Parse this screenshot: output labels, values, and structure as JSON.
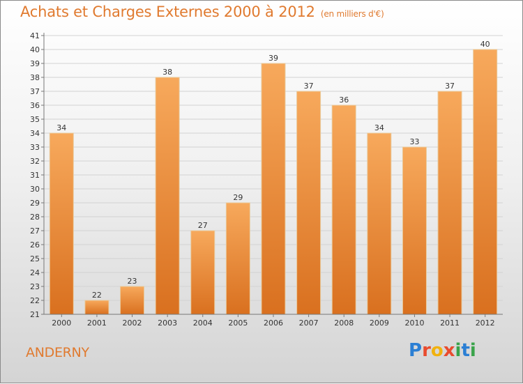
{
  "title": "Achats et Charges Externes 2000 à 2012",
  "unit": "(en milliers d'€)",
  "location": "ANDERNY",
  "logo": {
    "letters": [
      "P",
      "r",
      "o",
      "x",
      "i",
      "t",
      "i"
    ],
    "colors": [
      "#2b7fd4",
      "#e94b2e",
      "#f1b20f",
      "#e94b2e",
      "#3aa34a",
      "#2b7fd4",
      "#3aa34a"
    ]
  },
  "colors": {
    "bar_light": "#f7a95c",
    "bar_dark": "#d9701f",
    "text_accent": "#e07a2f"
  },
  "chart_data": {
    "type": "bar",
    "categories": [
      "2000",
      "2001",
      "2002",
      "2003",
      "2004",
      "2005",
      "2006",
      "2007",
      "2008",
      "2009",
      "2010",
      "2011",
      "2012"
    ],
    "values": [
      34,
      22,
      23,
      38,
      27,
      29,
      39,
      37,
      36,
      34,
      33,
      37,
      40
    ],
    "data_labels": [
      "34",
      "22",
      "23",
      "38",
      "27",
      "29",
      "39",
      "37",
      "36",
      "34",
      "33",
      "37",
      "40"
    ],
    "ylim": [
      21,
      41
    ],
    "yticks": [
      "21",
      "22",
      "23",
      "24",
      "25",
      "26",
      "27",
      "28",
      "29",
      "30",
      "31",
      "32",
      "33",
      "34",
      "35",
      "36",
      "37",
      "38",
      "39",
      "40",
      "41"
    ],
    "grid": true
  }
}
